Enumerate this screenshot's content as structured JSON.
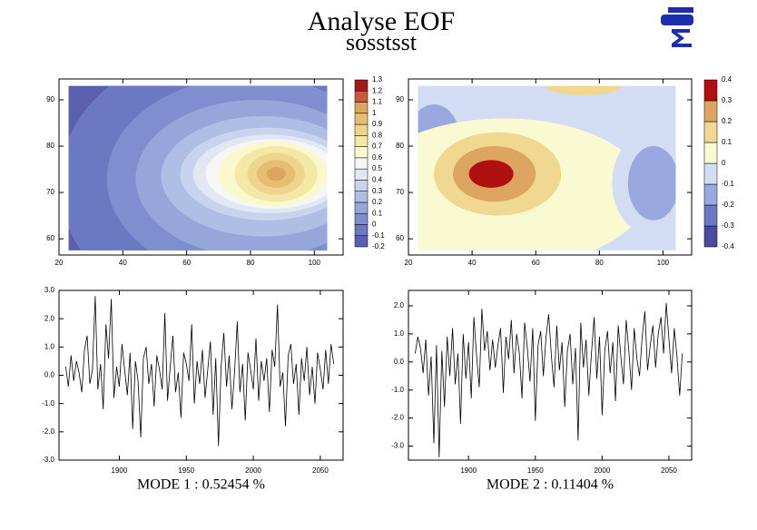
{
  "title": "Analyse EOF",
  "subtitle": "sosstsst",
  "chart_data": [
    {
      "type": "contour",
      "xlim": [
        20,
        109
      ],
      "ylim": [
        56.5,
        94.5
      ],
      "xticks": [
        20,
        40,
        60,
        80,
        100
      ],
      "yticks": [
        60,
        70,
        80,
        90
      ],
      "data_extent": {
        "x": [
          23,
          104
        ],
        "y": [
          57.5,
          93
        ]
      },
      "levels": [
        -0.2,
        -0.1,
        0,
        0.1,
        0.2,
        0.3,
        0.4,
        0.5,
        0.6,
        0.7,
        0.8,
        0.9,
        1,
        1.1,
        1.2,
        1.3
      ],
      "colors": [
        "#5a5fae",
        "#6b78c2",
        "#7e8ecf",
        "#96a6da",
        "#afbee5",
        "#c8d3ee",
        "#e1e8f4",
        "#f6f6f4",
        "#faf8cc",
        "#f3e8a6",
        "#eed48c",
        "#e6bd72",
        "#dea562",
        "#c85a3c",
        "#a01818"
      ],
      "background_level": -0.2,
      "regions": [
        {
          "level": -0.1,
          "cx": 75,
          "cy": 72,
          "rx": 55,
          "ry": 30
        },
        {
          "level": 0,
          "cx": 80,
          "cy": 73,
          "rx": 45,
          "ry": 22
        },
        {
          "level": 0.1,
          "cx": 82,
          "cy": 73,
          "rx": 38,
          "ry": 17
        },
        {
          "level": 0.2,
          "cx": 84,
          "cy": 73.5,
          "rx": 32,
          "ry": 13
        },
        {
          "level": 0.3,
          "cx": 85,
          "cy": 74,
          "rx": 27,
          "ry": 10
        },
        {
          "level": 0.4,
          "cx": 86,
          "cy": 74,
          "rx": 24,
          "ry": 8.5
        },
        {
          "level": 0.5,
          "cx": 87,
          "cy": 74,
          "rx": 21,
          "ry": 7.5
        },
        {
          "level": 0.6,
          "cx": 87,
          "cy": 74,
          "rx": 17,
          "ry": 7
        },
        {
          "level": 0.7,
          "cx": 88,
          "cy": 74,
          "rx": 13,
          "ry": 6
        },
        {
          "level": 0.8,
          "cx": 88,
          "cy": 74,
          "rx": 9,
          "ry": 4.5
        },
        {
          "level": 0.9,
          "cx": 88,
          "cy": 74,
          "rx": 6,
          "ry": 3
        },
        {
          "level": 1,
          "cx": 88,
          "cy": 74,
          "rx": 3,
          "ry": 1.5
        }
      ]
    },
    {
      "type": "contour",
      "xlim": [
        20,
        109
      ],
      "ylim": [
        56.5,
        94.5
      ],
      "xticks": [
        20,
        40,
        60,
        80,
        100
      ],
      "yticks": [
        60,
        70,
        80,
        90
      ],
      "data_extent": {
        "x": [
          23,
          104
        ],
        "y": [
          57.5,
          93
        ]
      },
      "levels": [
        -0.4,
        -0.3,
        -0.2,
        -0.1,
        0,
        0.1,
        0.2,
        0.3,
        0.4
      ],
      "colors": [
        "#4a4a9e",
        "#6a78c6",
        "#9aa8e0",
        "#d2dcf2",
        "#fafad2",
        "#f0d890",
        "#dea562",
        "#b01010"
      ],
      "background_level": -0.1,
      "regions": [
        {
          "level": -0.2,
          "cx": 28,
          "cy": 82,
          "rx": 8,
          "ry": 7
        },
        {
          "level": 0,
          "cx": 50,
          "cy": 70,
          "rx": 45,
          "ry": 16
        },
        {
          "level": 0.1,
          "cx": 75,
          "cy": 93,
          "rx": 12,
          "ry": 2
        },
        {
          "level": 0.1,
          "cx": 48,
          "cy": 74,
          "rx": 20,
          "ry": 9
        },
        {
          "level": 0.2,
          "cx": 47,
          "cy": 74,
          "rx": 13,
          "ry": 6
        },
        {
          "level": 0.3,
          "cx": 46,
          "cy": 74,
          "rx": 7,
          "ry": 3
        },
        {
          "level": -0.1,
          "cx": 96,
          "cy": 72,
          "rx": 12,
          "ry": 11
        },
        {
          "level": -0.2,
          "cx": 97,
          "cy": 72,
          "rx": 8,
          "ry": 8
        }
      ]
    },
    {
      "type": "line",
      "xlabel": "MODE 1 : 0.52454 %",
      "xlim": [
        1855,
        2067
      ],
      "ylim": [
        -3,
        3
      ],
      "xticks": [
        1900,
        1950,
        2000,
        2050
      ],
      "yticks": [
        {
          "value": -3,
          "label": "-3.0"
        },
        {
          "value": -2,
          "label": "-2.0"
        },
        {
          "value": -1,
          "label": "-1.0"
        },
        {
          "value": 0,
          "label": "0.0"
        },
        {
          "value": 1,
          "label": "1.0"
        },
        {
          "value": 2,
          "label": "2.0"
        },
        {
          "value": 3,
          "label": "3.0"
        }
      ],
      "color": "#000000",
      "x": [
        1860,
        1862,
        1864,
        1866,
        1868,
        1870,
        1872,
        1874,
        1876,
        1878,
        1880,
        1882,
        1884,
        1886,
        1888,
        1890,
        1892,
        1894,
        1896,
        1898,
        1900,
        1902,
        1904,
        1906,
        1908,
        1910,
        1912,
        1914,
        1916,
        1918,
        1920,
        1922,
        1924,
        1926,
        1928,
        1930,
        1932,
        1934,
        1936,
        1938,
        1940,
        1942,
        1944,
        1946,
        1948,
        1950,
        1952,
        1954,
        1956,
        1958,
        1960,
        1962,
        1964,
        1966,
        1968,
        1970,
        1972,
        1974,
        1976,
        1978,
        1980,
        1982,
        1984,
        1986,
        1988,
        1990,
        1992,
        1994,
        1996,
        1998,
        2000,
        2002,
        2004,
        2006,
        2008,
        2010,
        2012,
        2014,
        2016,
        2018,
        2020,
        2022,
        2024,
        2026,
        2028,
        2030,
        2032,
        2034,
        2036,
        2038,
        2040,
        2042,
        2044,
        2046,
        2048,
        2050,
        2052,
        2054,
        2056,
        2058,
        2060
      ],
      "values": [
        0.3,
        -0.4,
        0.7,
        -0.2,
        0.5,
        0.1,
        -0.6,
        0.9,
        1.4,
        -0.3,
        0.2,
        2.8,
        -0.5,
        0.4,
        -1.2,
        1.8,
        0.6,
        2.7,
        -0.8,
        0.3,
        -0.4,
        1.1,
        0.2,
        -0.7,
        0.8,
        -1.9,
        0.5,
        -0.2,
        -2.2,
        0.6,
        1.0,
        -0.3,
        0.4,
        -1.1,
        0.7,
        0.2,
        -0.5,
        2.2,
        -0.9,
        0.3,
        1.4,
        -0.6,
        0.1,
        -1.5,
        0.8,
        0.4,
        -0.2,
        1.8,
        -1.0,
        0.5,
        -0.3,
        0.9,
        -0.8,
        0.2,
        1.2,
        -1.4,
        0.6,
        -2.5,
        0.3,
        1.5,
        -0.4,
        0.7,
        -1.2,
        0.1,
        1.9,
        -0.6,
        0.4,
        -1.6,
        0.8,
        0.2,
        -0.5,
        1.3,
        -0.9,
        0.5,
        -0.2,
        0.6,
        -1.3,
        0.9,
        0.3,
        2.5,
        -0.4,
        0.1,
        -1.8,
        0.7,
        1.1,
        -0.3,
        0.4,
        -1.4,
        0.6,
        -0.2,
        1.0,
        -0.7,
        0.3,
        -1.0,
        0.8,
        0.2,
        -0.5,
        0.9,
        -0.3,
        1.1,
        0.4
      ]
    },
    {
      "type": "line",
      "xlabel": "MODE 2 : 0.11404 %",
      "xlim": [
        1855,
        2067
      ],
      "ylim": [
        -3.5,
        2.55
      ],
      "xticks": [
        1900,
        1950,
        2000,
        2050
      ],
      "yticks": [
        {
          "value": -3,
          "label": "-3.0"
        },
        {
          "value": -2,
          "label": "-2.0"
        },
        {
          "value": -1,
          "label": "-1.0"
        },
        {
          "value": 0,
          "label": "0.0"
        },
        {
          "value": 1,
          "label": "1.0"
        },
        {
          "value": 2,
          "label": "2.0"
        }
      ],
      "color": "#000000",
      "x": [
        1860,
        1862,
        1864,
        1866,
        1868,
        1870,
        1872,
        1874,
        1876,
        1878,
        1880,
        1882,
        1884,
        1886,
        1888,
        1890,
        1892,
        1894,
        1896,
        1898,
        1900,
        1902,
        1904,
        1906,
        1908,
        1910,
        1912,
        1914,
        1916,
        1918,
        1920,
        1922,
        1924,
        1926,
        1928,
        1930,
        1932,
        1934,
        1936,
        1938,
        1940,
        1942,
        1944,
        1946,
        1948,
        1950,
        1952,
        1954,
        1956,
        1958,
        1960,
        1962,
        1964,
        1966,
        1968,
        1970,
        1972,
        1974,
        1976,
        1978,
        1980,
        1982,
        1984,
        1986,
        1988,
        1990,
        1992,
        1994,
        1996,
        1998,
        2000,
        2002,
        2004,
        2006,
        2008,
        2010,
        2012,
        2014,
        2016,
        2018,
        2020,
        2022,
        2024,
        2026,
        2028,
        2030,
        2032,
        2034,
        2036,
        2038,
        2040,
        2042,
        2044,
        2046,
        2048,
        2050,
        2052,
        2054,
        2056,
        2058,
        2060
      ],
      "values": [
        0.3,
        0.9,
        0.5,
        -0.4,
        0.8,
        -1.2,
        0.2,
        -2.9,
        0.6,
        -3.4,
        0.4,
        -1.6,
        0.9,
        -0.5,
        1.2,
        -0.8,
        0.3,
        -2.2,
        1.0,
        -0.6,
        0.7,
        -1.3,
        1.6,
        0.2,
        -0.9,
        1.9,
        0.4,
        1.1,
        -0.3,
        0.8,
        -0.2,
        0.6,
        1.2,
        -1.1,
        0.9,
        0.1,
        1.5,
        -0.4,
        1.0,
        0.3,
        -1.3,
        1.4,
        0.5,
        -0.7,
        1.2,
        -2.1,
        0.6,
        1.1,
        -0.5,
        0.9,
        1.7,
        0.2,
        -0.9,
        1.3,
        -0.3,
        0.7,
        -1.6,
        0.4,
        1.0,
        -0.8,
        0.5,
        -2.8,
        1.4,
        -0.2,
        0.8,
        -1.2,
        0.3,
        1.6,
        -0.6,
        0.9,
        -1.9,
        0.4,
        1.1,
        -0.4,
        0.7,
        -1.4,
        1.3,
        0.2,
        -0.8,
        1.5,
        0.4,
        -1.0,
        1.2,
        0.1,
        -0.5,
        0.9,
        1.8,
        -0.3,
        0.6,
        1.3,
        -0.2,
        1.0,
        1.6,
        0.3,
        2.1,
        0.8,
        -0.4,
        1.2,
        0.2,
        -1.2,
        0.3
      ]
    }
  ]
}
